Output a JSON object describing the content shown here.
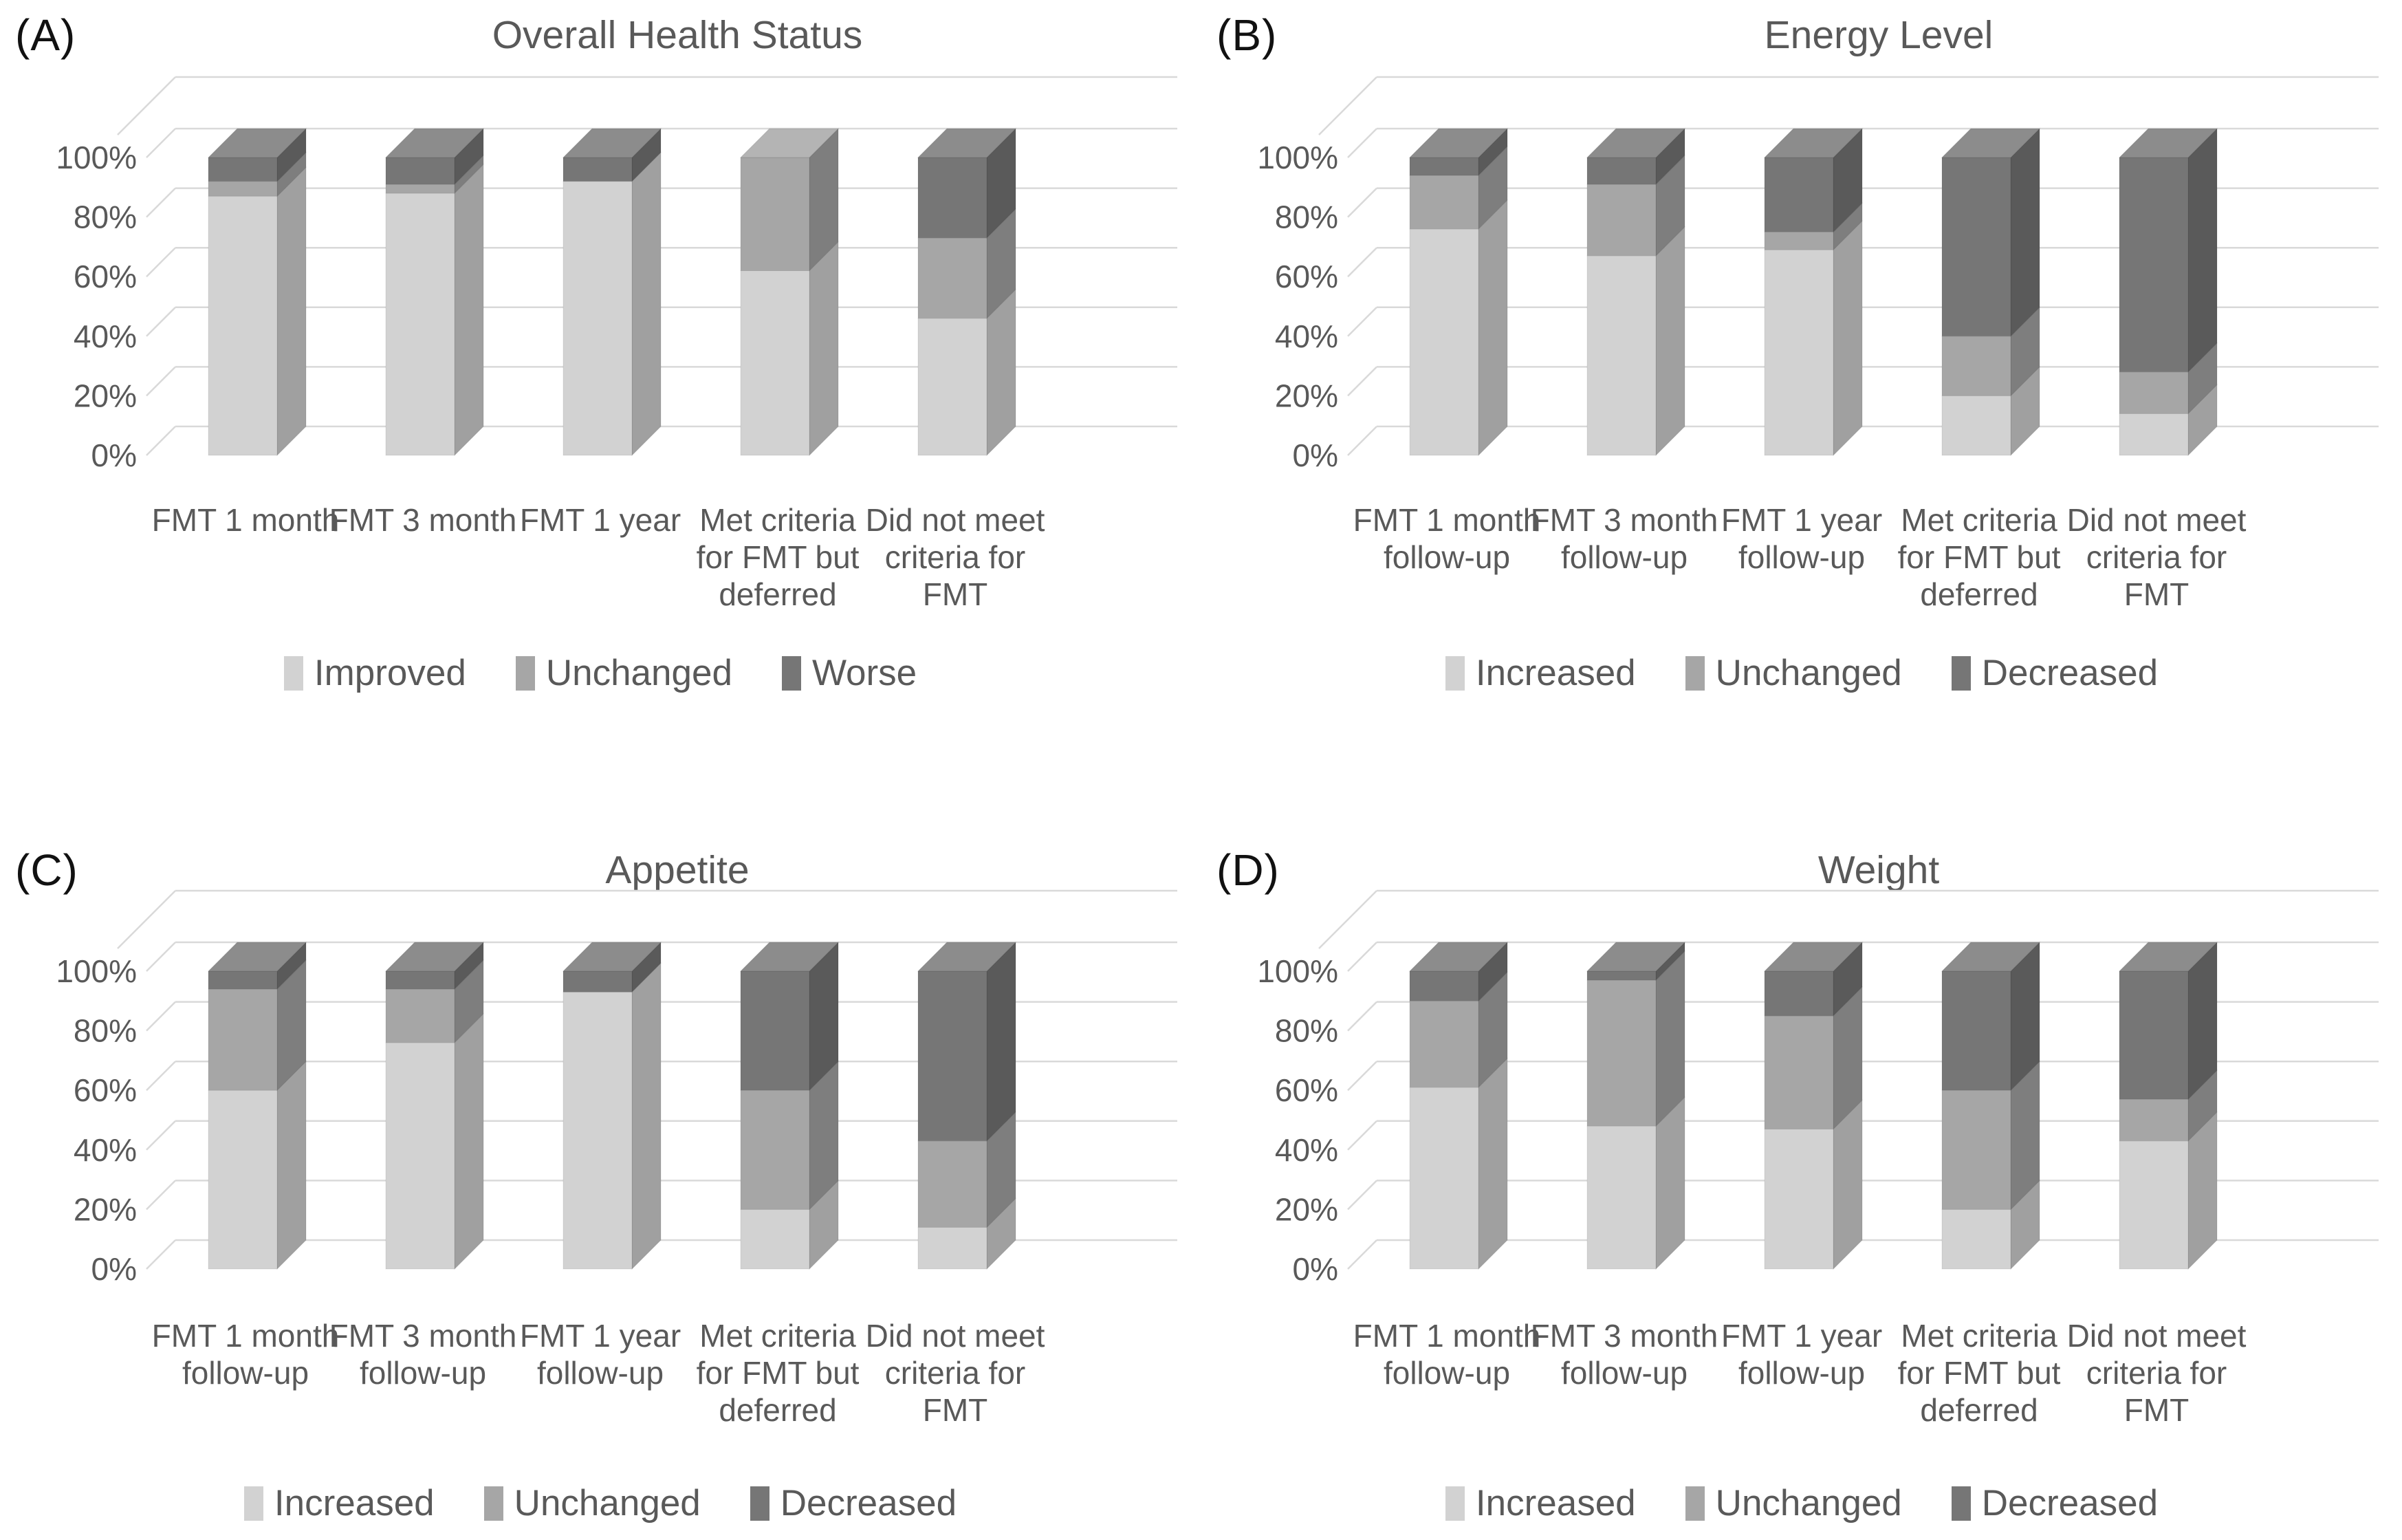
{
  "page": {
    "background": "#ffffff"
  },
  "colors": {
    "segment_positive": "#d2d2d2",
    "segment_unchanged": "#a6a6a6",
    "segment_negative": "#767676",
    "gridline": "#d9d9d9",
    "axis_text": "#595959",
    "title_text": "#595959",
    "panel_letter_text": "#111111"
  },
  "chart_data": [
    {
      "panel_label": "(A)",
      "title": "Overall Health Status",
      "type": "bar",
      "stacked": "100%",
      "grid": true,
      "ylim": [
        0,
        100
      ],
      "y_tick_labels": [
        "0%",
        "20%",
        "40%",
        "60%",
        "80%",
        "100%"
      ],
      "legend_position": "bottom",
      "categories": [
        [
          "FMT 1 month"
        ],
        [
          "FMT 3 month"
        ],
        [
          "FMT 1 year"
        ],
        [
          "Met criteria",
          "for FMT but",
          "deferred"
        ],
        [
          "Did not meet",
          "criteria for",
          "FMT"
        ]
      ],
      "series": [
        {
          "name": "Improved",
          "color": "#d2d2d2",
          "values": [
            87,
            88,
            92,
            62,
            46
          ]
        },
        {
          "name": "Unchanged",
          "color": "#a6a6a6",
          "values": [
            5,
            3,
            0,
            38,
            27
          ]
        },
        {
          "name": "Worse",
          "color": "#767676",
          "values": [
            8,
            9,
            8,
            0,
            27
          ]
        }
      ]
    },
    {
      "panel_label": "(B)",
      "title": "Energy Level",
      "type": "bar",
      "stacked": "100%",
      "grid": true,
      "ylim": [
        0,
        100
      ],
      "y_tick_labels": [
        "0%",
        "20%",
        "40%",
        "60%",
        "80%",
        "100%"
      ],
      "legend_position": "bottom",
      "categories": [
        [
          "FMT 1 month",
          "follow-up"
        ],
        [
          "FMT 3 month",
          "follow-up"
        ],
        [
          "FMT 1 year",
          "follow-up"
        ],
        [
          "Met criteria",
          "for FMT but",
          "deferred"
        ],
        [
          "Did not meet",
          "criteria for",
          "FMT"
        ]
      ],
      "series": [
        {
          "name": "Increased",
          "color": "#d2d2d2",
          "values": [
            76,
            67,
            69,
            20,
            14
          ]
        },
        {
          "name": "Unchanged",
          "color": "#a6a6a6",
          "values": [
            18,
            24,
            6,
            20,
            14
          ]
        },
        {
          "name": "Decreased",
          "color": "#767676",
          "values": [
            6,
            9,
            25,
            60,
            72
          ]
        }
      ]
    },
    {
      "panel_label": "(C)",
      "title": "Appetite",
      "type": "bar",
      "stacked": "100%",
      "grid": true,
      "ylim": [
        0,
        100
      ],
      "y_tick_labels": [
        "0%",
        "20%",
        "40%",
        "60%",
        "80%",
        "100%"
      ],
      "legend_position": "bottom",
      "categories": [
        [
          "FMT 1 month",
          "follow-up"
        ],
        [
          "FMT 3 month",
          "follow-up"
        ],
        [
          "FMT 1 year",
          "follow-up"
        ],
        [
          "Met criteria",
          "for FMT but",
          "deferred"
        ],
        [
          "Did not meet",
          "criteria for",
          "FMT"
        ]
      ],
      "series": [
        {
          "name": "Increased",
          "color": "#d2d2d2",
          "values": [
            60,
            76,
            93,
            20,
            14
          ]
        },
        {
          "name": "Unchanged",
          "color": "#a6a6a6",
          "values": [
            34,
            18,
            0,
            40,
            29
          ]
        },
        {
          "name": "Decreased",
          "color": "#767676",
          "values": [
            6,
            6,
            7,
            40,
            57
          ]
        }
      ]
    },
    {
      "panel_label": "(D)",
      "title": "Weight",
      "type": "bar",
      "stacked": "100%",
      "grid": true,
      "ylim": [
        0,
        100
      ],
      "y_tick_labels": [
        "0%",
        "20%",
        "40%",
        "60%",
        "80%",
        "100%"
      ],
      "legend_position": "bottom",
      "categories": [
        [
          "FMT 1 month",
          "follow-up"
        ],
        [
          "FMT 3 month",
          "follow-up"
        ],
        [
          "FMT 1 year",
          "follow-up"
        ],
        [
          "Met criteria",
          "for FMT but",
          "deferred"
        ],
        [
          "Did not meet",
          "criteria for",
          "FMT"
        ]
      ],
      "series": [
        {
          "name": "Increased",
          "color": "#d2d2d2",
          "values": [
            61,
            48,
            47,
            20,
            43
          ]
        },
        {
          "name": "Unchanged",
          "color": "#a6a6a6",
          "values": [
            29,
            49,
            38,
            40,
            14
          ]
        },
        {
          "name": "Decreased",
          "color": "#767676",
          "values": [
            10,
            3,
            15,
            40,
            43
          ]
        }
      ]
    }
  ]
}
